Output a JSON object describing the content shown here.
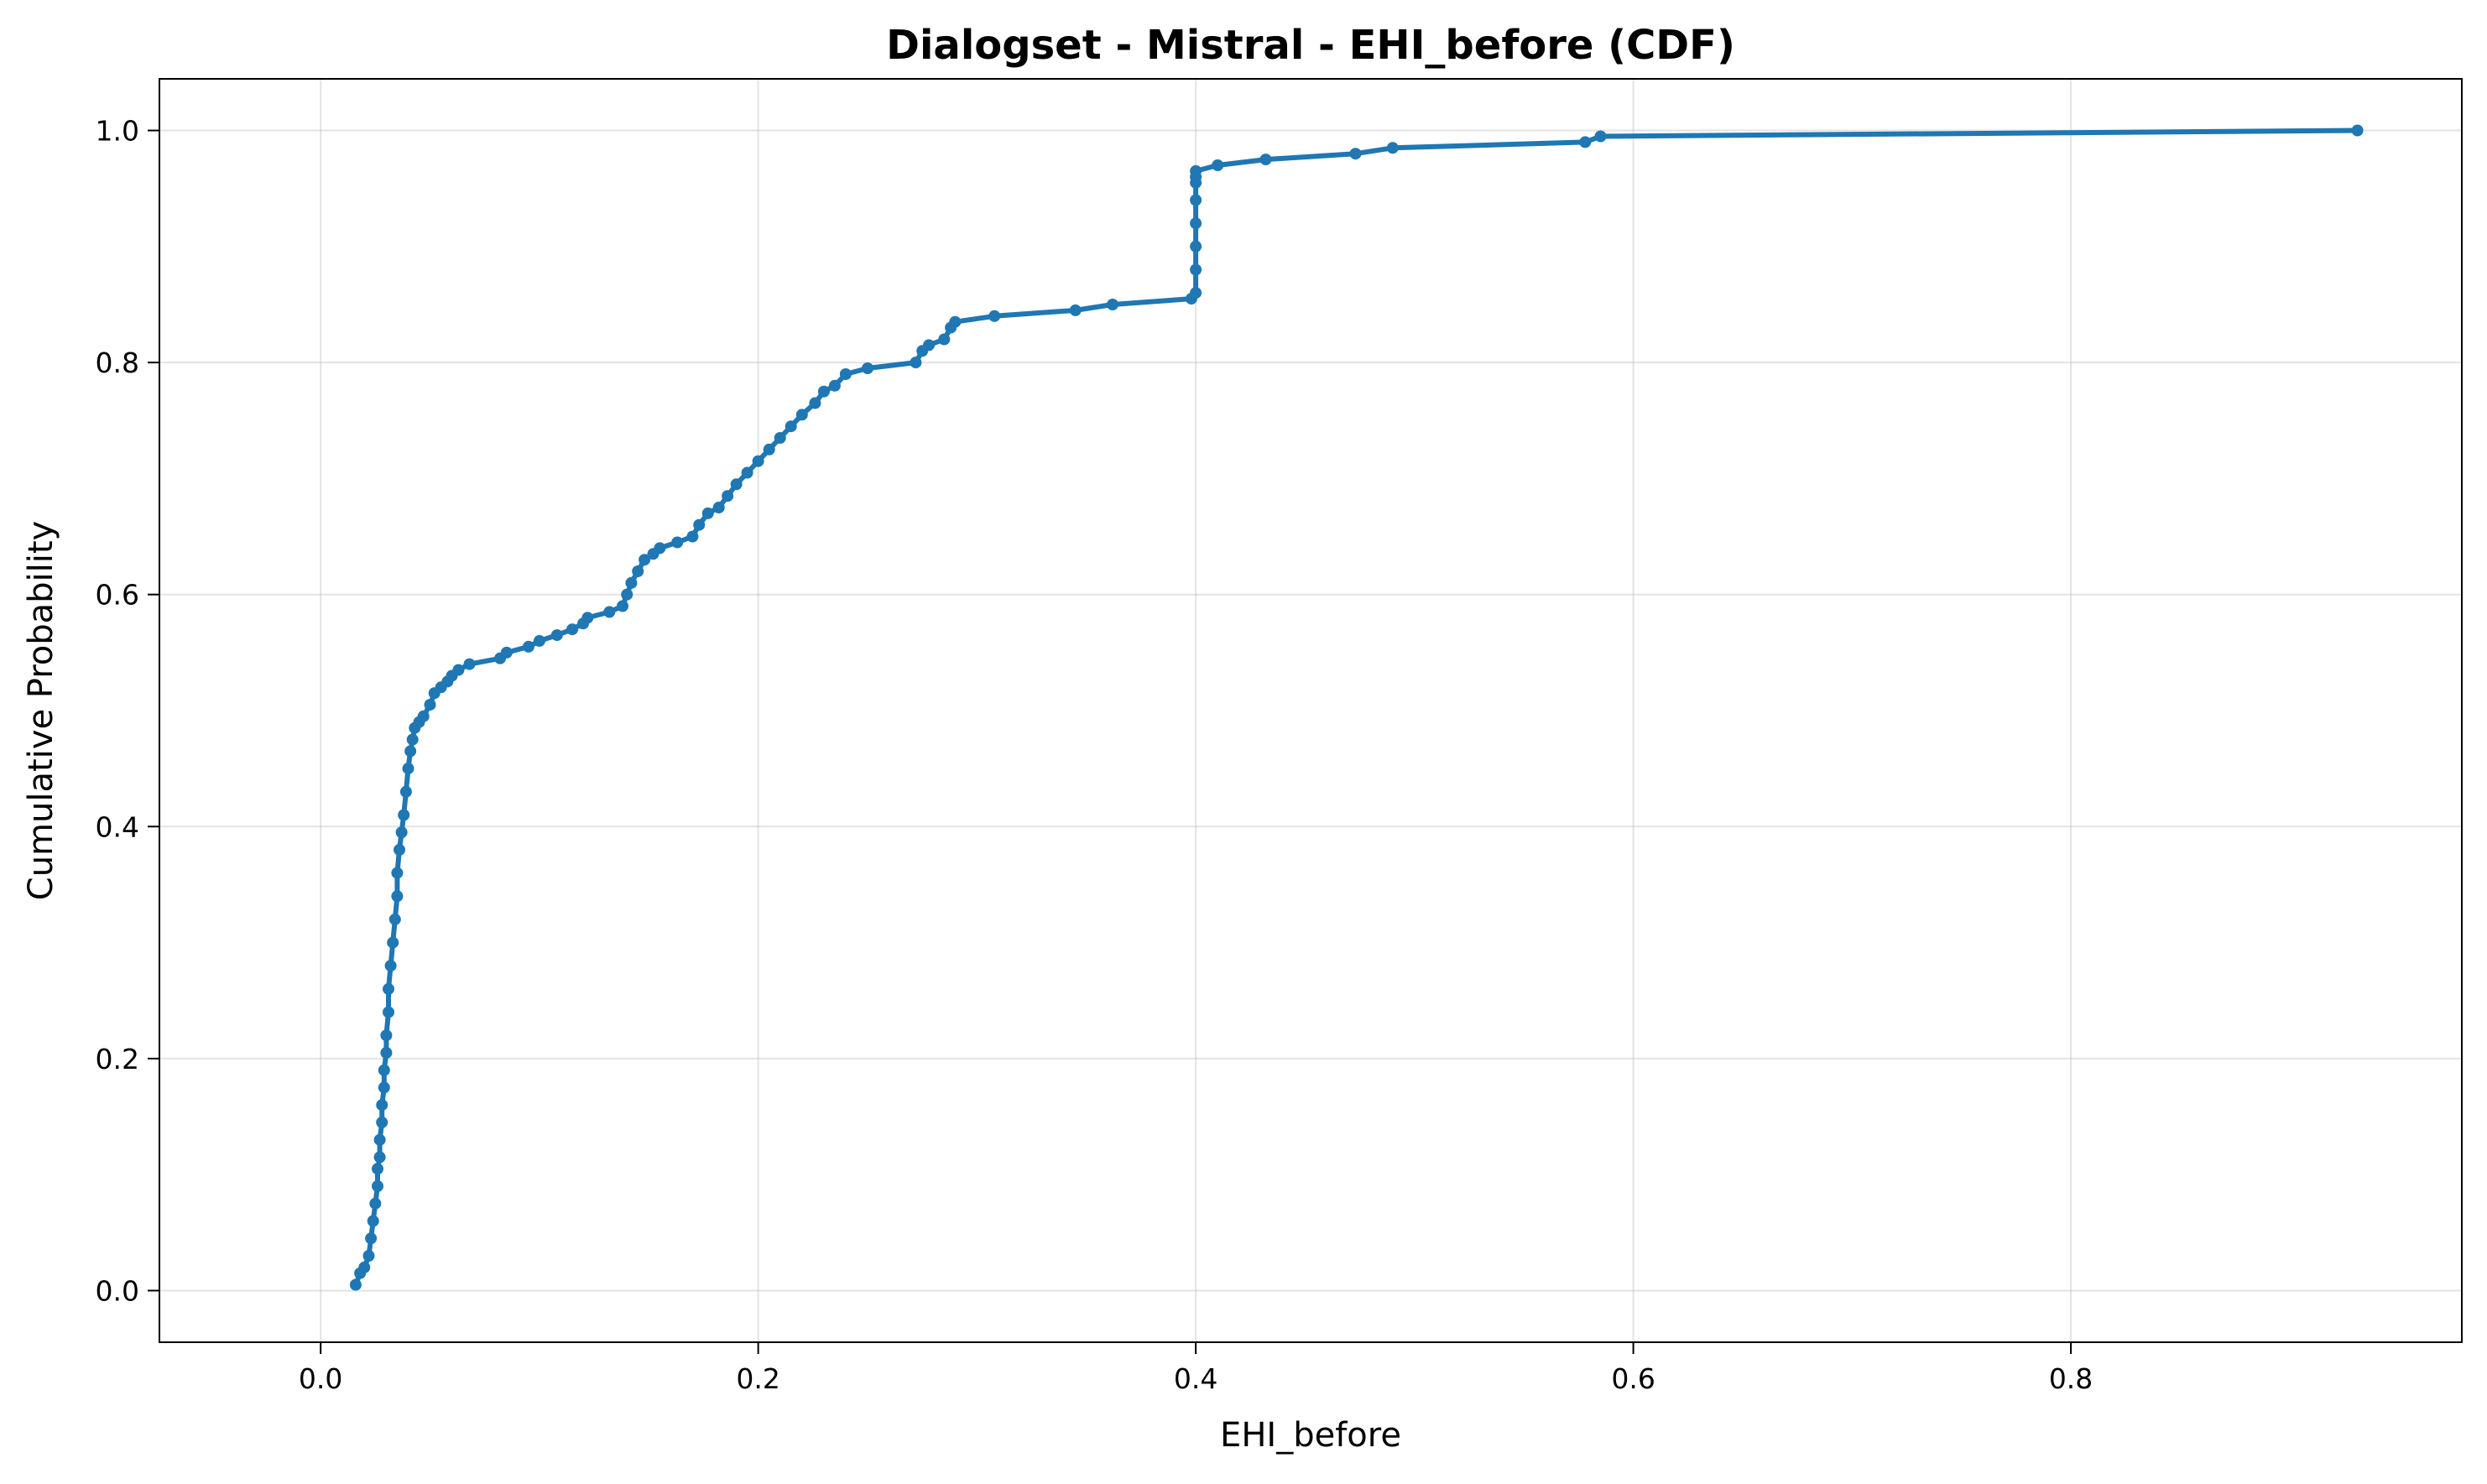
{
  "chart_data": {
    "type": "line",
    "title": "Dialogset - Mistral - EHI_before (CDF)",
    "xlabel": "EHI_before",
    "ylabel": "Cumulative Probability",
    "xlim": [
      -0.0737,
      0.9787
    ],
    "ylim": [
      -0.0445,
      1.0445
    ],
    "xticks": [
      0.0,
      0.2,
      0.4,
      0.6,
      0.8
    ],
    "xtick_labels": [
      "0.0",
      "0.2",
      "0.4",
      "0.6",
      "0.8"
    ],
    "yticks": [
      0.0,
      0.2,
      0.4,
      0.6,
      0.8,
      1.0
    ],
    "ytick_labels": [
      "0.0",
      "0.2",
      "0.4",
      "0.6",
      "0.8",
      "1.0"
    ],
    "grid": true,
    "series": [
      {
        "color": "#1f77b4",
        "marker": "circle",
        "x": [
          0.016,
          0.018,
          0.02,
          0.022,
          0.023,
          0.024,
          0.025,
          0.026,
          0.026,
          0.027,
          0.027,
          0.028,
          0.028,
          0.029,
          0.029,
          0.03,
          0.03,
          0.031,
          0.031,
          0.032,
          0.033,
          0.034,
          0.035,
          0.035,
          0.036,
          0.037,
          0.038,
          0.039,
          0.04,
          0.041,
          0.042,
          0.043,
          0.045,
          0.047,
          0.05,
          0.052,
          0.055,
          0.058,
          0.06,
          0.063,
          0.068,
          0.082,
          0.085,
          0.095,
          0.1,
          0.108,
          0.115,
          0.12,
          0.122,
          0.132,
          0.138,
          0.14,
          0.142,
          0.145,
          0.148,
          0.152,
          0.155,
          0.163,
          0.17,
          0.173,
          0.177,
          0.182,
          0.186,
          0.19,
          0.195,
          0.2,
          0.205,
          0.21,
          0.215,
          0.22,
          0.226,
          0.23,
          0.235,
          0.24,
          0.25,
          0.272,
          0.275,
          0.278,
          0.285,
          0.288,
          0.29,
          0.308,
          0.345,
          0.362,
          0.398,
          0.4,
          0.4,
          0.4,
          0.4,
          0.4,
          0.4,
          0.4,
          0.4,
          0.41,
          0.432,
          0.473,
          0.49,
          0.578,
          0.585,
          0.931
        ],
        "y": [
          0.005,
          0.015,
          0.02,
          0.03,
          0.045,
          0.06,
          0.075,
          0.09,
          0.105,
          0.115,
          0.13,
          0.145,
          0.16,
          0.175,
          0.19,
          0.205,
          0.22,
          0.24,
          0.26,
          0.28,
          0.3,
          0.32,
          0.34,
          0.36,
          0.38,
          0.395,
          0.41,
          0.43,
          0.45,
          0.465,
          0.475,
          0.485,
          0.49,
          0.495,
          0.505,
          0.515,
          0.52,
          0.525,
          0.53,
          0.535,
          0.54,
          0.545,
          0.55,
          0.555,
          0.56,
          0.565,
          0.57,
          0.575,
          0.58,
          0.585,
          0.59,
          0.6,
          0.61,
          0.62,
          0.63,
          0.635,
          0.64,
          0.645,
          0.65,
          0.66,
          0.67,
          0.675,
          0.685,
          0.695,
          0.705,
          0.715,
          0.725,
          0.735,
          0.745,
          0.755,
          0.765,
          0.775,
          0.78,
          0.79,
          0.795,
          0.8,
          0.81,
          0.815,
          0.82,
          0.83,
          0.835,
          0.84,
          0.845,
          0.85,
          0.855,
          0.86,
          0.88,
          0.9,
          0.92,
          0.94,
          0.955,
          0.96,
          0.965,
          0.97,
          0.975,
          0.98,
          0.985,
          0.99,
          0.995,
          1.0
        ]
      }
    ]
  }
}
